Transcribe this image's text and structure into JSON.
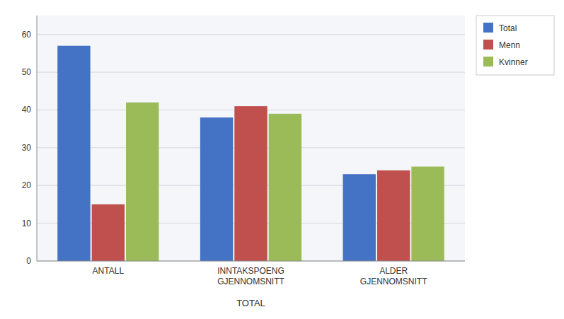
{
  "chart_data": {
    "type": "bar",
    "categories": [
      "ANTALL",
      "INNTAKSPOENG\nGJENNOMSNITT",
      "ALDER\nGJENNOMSNITT"
    ],
    "series": [
      {
        "name": "Total",
        "color": "#4472C4",
        "values": [
          57,
          38,
          23
        ]
      },
      {
        "name": "Menn",
        "color": "#C0504D",
        "values": [
          15,
          41,
          24
        ]
      },
      {
        "name": "Kvinner",
        "color": "#9BBB59",
        "values": [
          42,
          39,
          25
        ]
      }
    ],
    "xlabel": "TOTAL",
    "ylim": [
      0,
      65
    ],
    "yticks": [
      0,
      10,
      20,
      30,
      40,
      50,
      60
    ],
    "grid": true,
    "legend": "upper right"
  }
}
